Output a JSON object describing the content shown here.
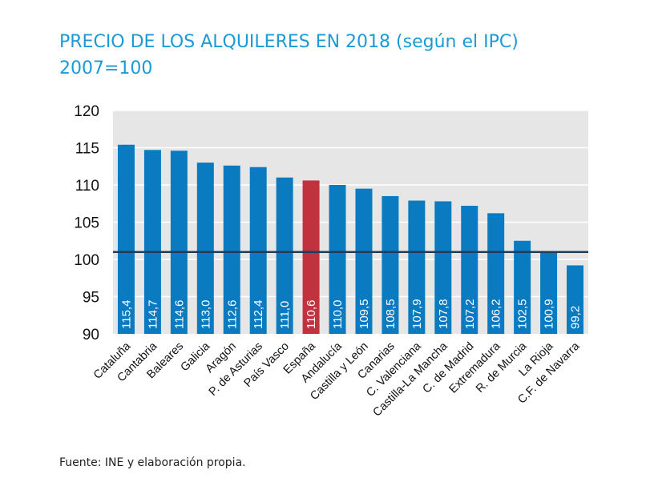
{
  "title_line1": "PRECIO DE LOS ALQUILERES EN 2018 (según el IPC)",
  "title_line2": "2007=100",
  "source": "Fuente: INE y elaboración propia.",
  "colors": {
    "bar": "#0b7bc1",
    "highlight": "#c0323e",
    "plot_bg": "#e6e6e6",
    "grid": "#ffffff",
    "reference_line": "#1d3d5c",
    "title": "#1a9ad6"
  },
  "chart_data": {
    "type": "bar",
    "categories": [
      "Cataluña",
      "Cantabria",
      "Baleares",
      "Galicia",
      "Aragón",
      "P. de Asturias",
      "País Vasco",
      "España",
      "Andalucía",
      "Castilla y León",
      "Canarias",
      "C. Valenciana",
      "Castilla-La Mancha",
      "C. de Madrid",
      "Extremadura",
      "R. de Murcia",
      "La Rioja",
      "C.F. de Navarra"
    ],
    "values": [
      115.4,
      114.7,
      114.6,
      113.0,
      112.6,
      112.4,
      111.0,
      110.6,
      110.0,
      109.5,
      108.5,
      107.9,
      107.8,
      107.2,
      106.2,
      102.5,
      100.9,
      99.2
    ],
    "value_labels": [
      "115,4",
      "114,7",
      "114,6",
      "113,0",
      "112,6",
      "112,4",
      "111,0",
      "110,6",
      "110,0",
      "109,5",
      "108,5",
      "107,9",
      "107,8",
      "107,2",
      "106,2",
      "102,5",
      "100,9",
      "99,2"
    ],
    "highlight_category": "España",
    "reference_value": 101,
    "ylim": [
      90,
      120
    ],
    "yticks": [
      "90",
      "95",
      "100",
      "105",
      "110",
      "115",
      "120"
    ],
    "grid": true,
    "legend": "none",
    "xlabel": "",
    "ylabel": ""
  }
}
